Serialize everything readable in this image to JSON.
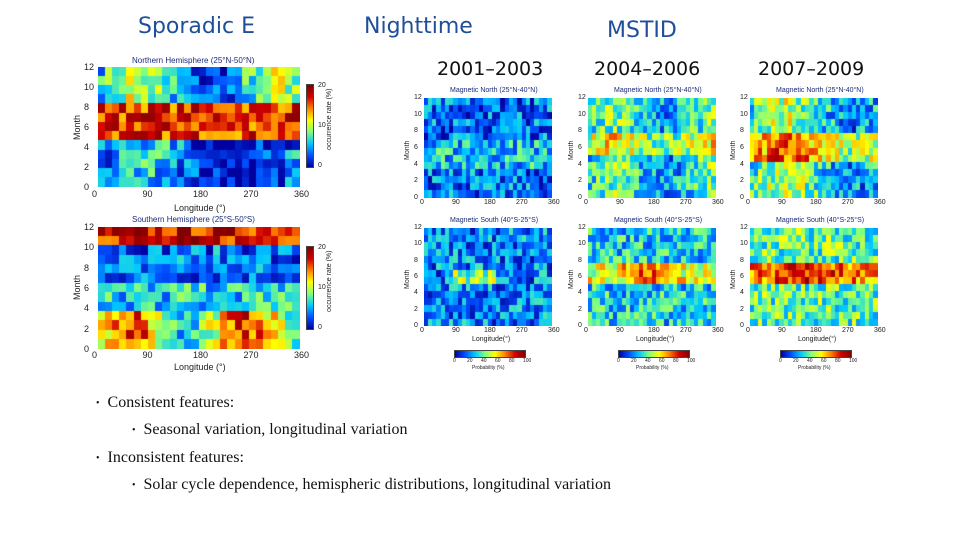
{
  "headers": {
    "sporadic_e": "Sporadic E",
    "nighttime": "Nighttime",
    "mstid": "MSTID"
  },
  "years": {
    "y1": "2001–2003",
    "y2": "2004–2006",
    "y3": "2007–2009"
  },
  "left_panels": {
    "north_title": "Northern Hemisphere (25°N-50°N)",
    "south_title": "Southern Hemisphere (25°S-50°S)",
    "ylabel": "Month",
    "xlabel": "Longitude (°)",
    "yticks": [
      "12",
      "10",
      "8",
      "6",
      "4",
      "2",
      "0"
    ],
    "xticks": [
      "0",
      "90",
      "180",
      "270",
      "360"
    ],
    "north_cbar_label": "occurrence rate (%)",
    "north_cbar_ticks": [
      "20",
      "10",
      "0"
    ],
    "south_cbar_label": "occurrence rate (%)",
    "south_cbar_ticks": [
      "20",
      "10",
      "0"
    ]
  },
  "mstid_panels": {
    "north_title": "Magnetic North (25°N-40°N)",
    "south_title": "Magnetic South (40°S-25°S)",
    "ylabel": "Month",
    "xlabel": "Longitude(°)",
    "yticks": [
      "12",
      "10",
      "8",
      "6",
      "4",
      "2",
      "0"
    ],
    "xticks": [
      "0",
      "90",
      "180",
      "270",
      "360"
    ],
    "cbar_ticks": [
      "0",
      "20",
      "40",
      "60",
      "80",
      "100"
    ],
    "cbar_label": "Probability (%)"
  },
  "bullets": {
    "consistent": "Consistent features:",
    "consistent_sub": "Seasonal variation, longitudinal variation",
    "inconsistent": "Inconsistent features:",
    "inconsistent_sub": "Solar cycle dependence, hemispheric distributions, longitudinal variation"
  },
  "colors": {
    "header_blue": "#1f4e9a",
    "colormap": [
      "#0000a0",
      "#0050ff",
      "#00c8ff",
      "#80ff80",
      "#ffff00",
      "#ff8000",
      "#d00000",
      "#800000"
    ]
  }
}
